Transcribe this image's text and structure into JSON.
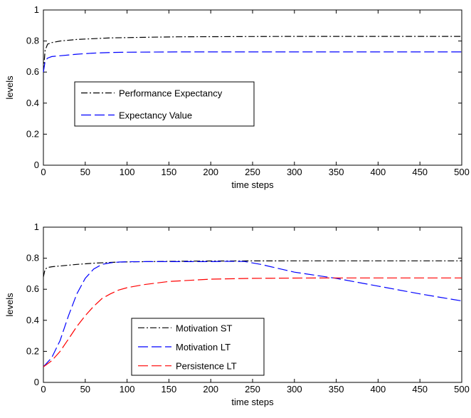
{
  "chart_data": [
    {
      "type": "line",
      "xlabel": "time steps",
      "ylabel": "levels",
      "xlim": [
        0,
        500
      ],
      "ylim": [
        0,
        1
      ],
      "xticks": [
        "0",
        "50",
        "100",
        "150",
        "200",
        "250",
        "300",
        "350",
        "400",
        "450",
        "500"
      ],
      "yticks": [
        "0",
        "0.2",
        "0.4",
        "0.6",
        "0.8",
        "1"
      ],
      "grid": false,
      "legend_position": "center-left",
      "series": [
        {
          "name": "Performance Expectancy",
          "color": "#000000",
          "style": "dash-dot",
          "x": [
            0,
            2,
            5,
            10,
            20,
            40,
            60,
            80,
            100,
            130,
            160,
            200,
            250,
            300,
            400,
            500
          ],
          "y": [
            0.6,
            0.74,
            0.78,
            0.79,
            0.8,
            0.81,
            0.815,
            0.82,
            0.822,
            0.825,
            0.827,
            0.828,
            0.829,
            0.83,
            0.83,
            0.83
          ]
        },
        {
          "name": "Expectancy Value",
          "color": "#0000ff",
          "style": "dashed",
          "x": [
            0,
            2,
            5,
            10,
            20,
            40,
            60,
            80,
            100,
            130,
            160,
            200,
            250,
            300,
            400,
            500
          ],
          "y": [
            0.6,
            0.67,
            0.69,
            0.7,
            0.705,
            0.715,
            0.722,
            0.726,
            0.728,
            0.729,
            0.73,
            0.73,
            0.73,
            0.73,
            0.73,
            0.73
          ]
        }
      ]
    },
    {
      "type": "line",
      "xlabel": "time steps",
      "ylabel": "levels",
      "xlim": [
        0,
        500
      ],
      "ylim": [
        0,
        1
      ],
      "xticks": [
        "0",
        "50",
        "100",
        "150",
        "200",
        "250",
        "300",
        "350",
        "400",
        "450",
        "500"
      ],
      "yticks": [
        "0",
        "0.2",
        "0.4",
        "0.6",
        "0.8",
        "1"
      ],
      "grid": false,
      "legend_position": "bottom-center",
      "series": [
        {
          "name": "Motivation ST",
          "color": "#000000",
          "style": "dash-dot",
          "x": [
            0,
            2,
            5,
            10,
            20,
            40,
            60,
            80,
            100,
            150,
            200,
            300,
            400,
            500
          ],
          "y": [
            0.68,
            0.73,
            0.74,
            0.745,
            0.75,
            0.76,
            0.768,
            0.773,
            0.776,
            0.78,
            0.782,
            0.783,
            0.783,
            0.783
          ]
        },
        {
          "name": "Motivation LT",
          "color": "#0000ff",
          "style": "dashed",
          "x": [
            0,
            10,
            20,
            30,
            40,
            50,
            60,
            70,
            80,
            90,
            100,
            120,
            150,
            200,
            220,
            240,
            260,
            280,
            300,
            350,
            400,
            450,
            500
          ],
          "y": [
            0.1,
            0.16,
            0.27,
            0.43,
            0.57,
            0.67,
            0.73,
            0.76,
            0.77,
            0.775,
            0.777,
            0.778,
            0.778,
            0.778,
            0.78,
            0.779,
            0.76,
            0.735,
            0.71,
            0.67,
            0.62,
            0.57,
            0.525
          ]
        },
        {
          "name": "Persistence LT",
          "color": "#ff0000",
          "style": "dashed",
          "x": [
            0,
            10,
            20,
            30,
            40,
            50,
            60,
            70,
            80,
            90,
            100,
            120,
            150,
            200,
            250,
            300,
            350,
            400,
            500
          ],
          "y": [
            0.1,
            0.14,
            0.2,
            0.28,
            0.36,
            0.43,
            0.49,
            0.54,
            0.57,
            0.595,
            0.61,
            0.63,
            0.65,
            0.665,
            0.67,
            0.672,
            0.673,
            0.673,
            0.673
          ]
        }
      ]
    }
  ]
}
